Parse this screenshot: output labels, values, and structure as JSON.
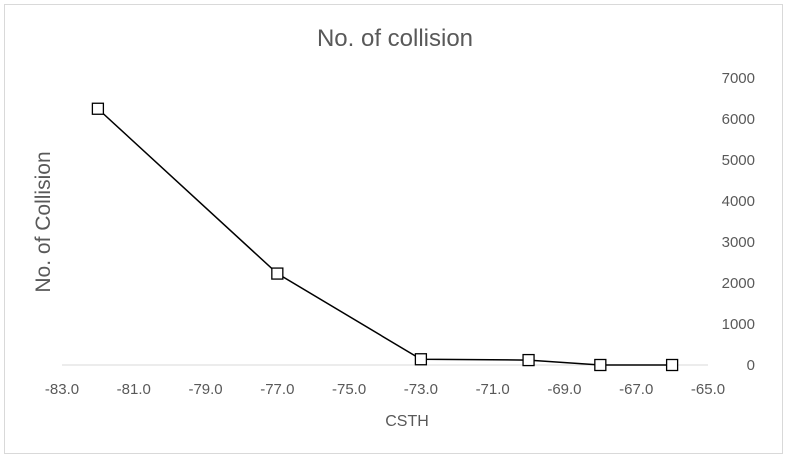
{
  "chart_data": {
    "type": "scatter",
    "title": "No. of collision",
    "xlabel": "CSTH",
    "ylabel": "No. of Collision",
    "xlim": [
      -83.0,
      -65.0
    ],
    "ylim": [
      0,
      7000
    ],
    "x_ticks": [
      "-83.0",
      "-81.0",
      "-79.0",
      "-77.0",
      "-75.0",
      "-73.0",
      "-71.0",
      "-69.0",
      "-67.0",
      "-65.0"
    ],
    "y_ticks": [
      "0",
      "1000",
      "2000",
      "3000",
      "4000",
      "5000",
      "6000",
      "7000"
    ],
    "y_axis_side": "right",
    "grid": false,
    "marker": "square",
    "line_color": "#000000",
    "series": [
      {
        "x": [
          -82,
          -77,
          -73,
          -70,
          -68,
          -66
        ],
        "y": [
          6250,
          2230,
          140,
          120,
          0,
          0
        ]
      }
    ]
  }
}
